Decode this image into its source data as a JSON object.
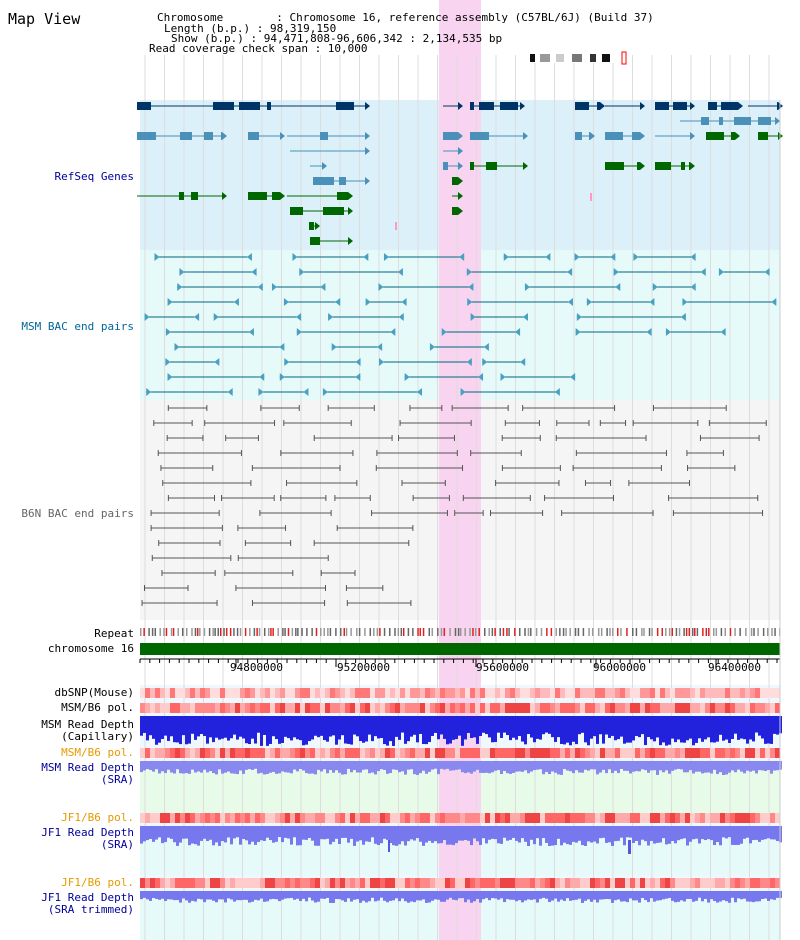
{
  "page": {
    "title": "Map View"
  },
  "info": {
    "chromosome": "Chromosome        : Chromosome 16, reference assembly (C57BL/6J) (Build 37)",
    "length": "Length (b.p.) : 98,319,150",
    "show": "Show (b.p.) : 94,471,808-96,606,342 : 2,134,535 bp",
    "coverage": "Read coverage check span : 10,000"
  },
  "tracks": {
    "refseq": "RefSeq Genes",
    "msm_bac": "MSM BAC end pairs",
    "b6n_bac": "B6N BAC end pairs",
    "repeat": "Repeat",
    "chrom": "chromosome 16",
    "dbsnp": "dbSNP(Mouse)",
    "msm_pol": "MSM/B6 pol.",
    "msm_depth_cap": "MSM Read Depth",
    "msm_depth_cap_sub": "(Capillary)",
    "msm_pol2": "MSM/B6 pol.",
    "msm_depth_sra": "MSM Read Depth",
    "msm_depth_sra_sub": "(SRA)",
    "jf1_pol": "JF1/B6 pol.",
    "jf1_depth": "JF1 Read Depth",
    "jf1_depth_sub": "(SRA)",
    "jf1_pol2": "JF1/B6 pol.",
    "jf1_depth_trim": "JF1 Read Depth",
    "jf1_depth_trim_sub": "(SRA trimmed)"
  },
  "axis": {
    "ticks": [
      "94800000",
      "95200000",
      "95600000",
      "96000000",
      "96400000"
    ]
  },
  "colors": {
    "refseq_bg": "#dcf0fa",
    "bac_bg": "#e6fafa",
    "gray_bg": "#f5f5f5",
    "highlight": "#f8d4f0",
    "dark_blue": "#003366",
    "mid_blue": "#4a90b8",
    "green": "#006600",
    "teal": "#006680",
    "label_blue": "#000099",
    "label_teal": "#006699",
    "label_orange": "#e69900",
    "chrom_green": "#006600"
  }
}
